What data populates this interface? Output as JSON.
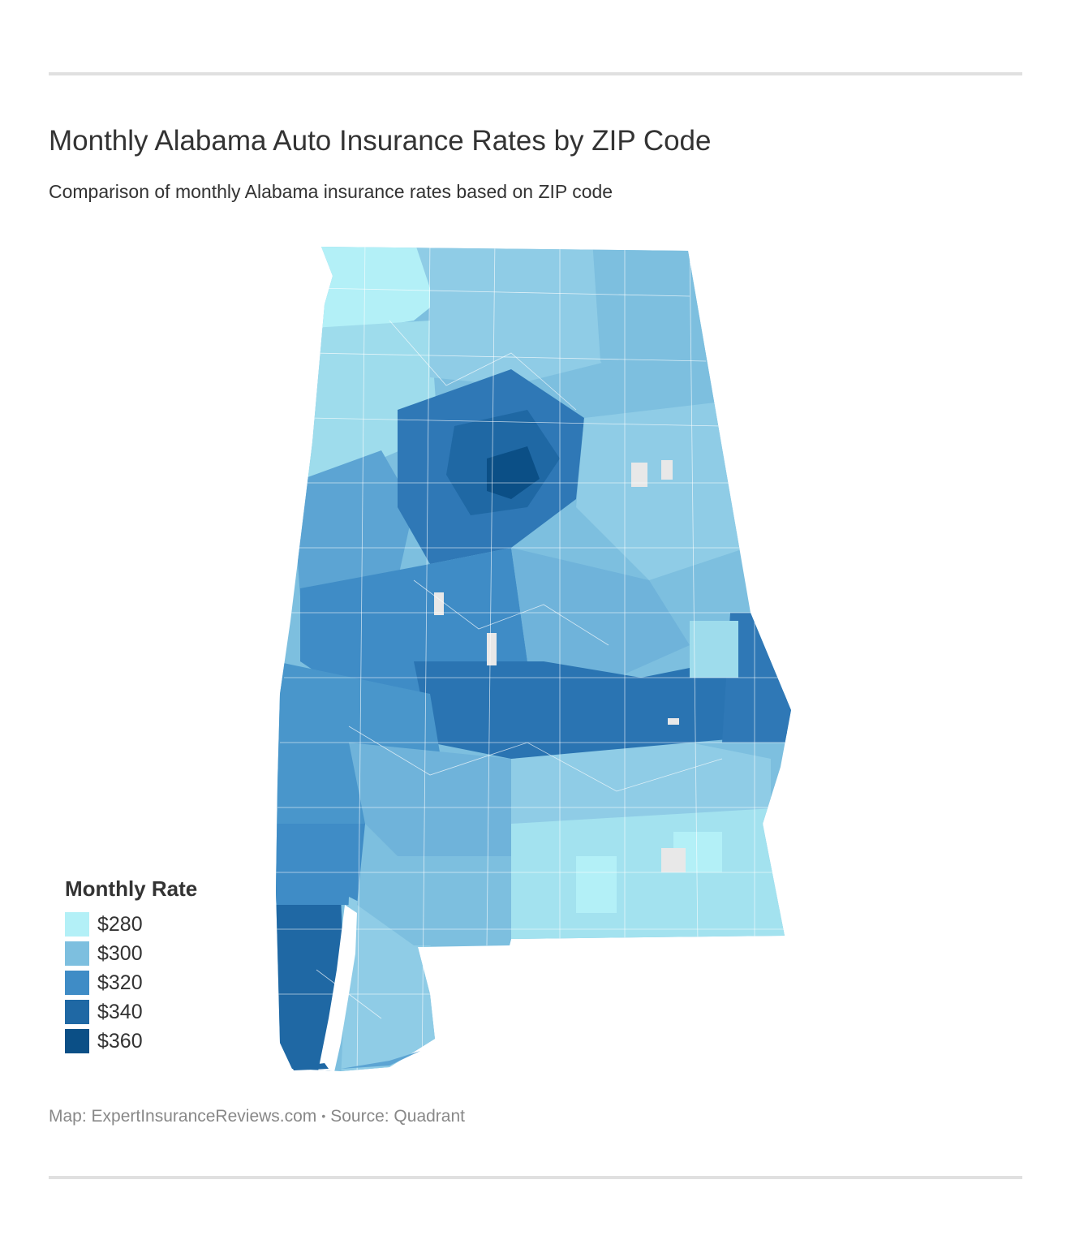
{
  "header": {
    "title": "Monthly Alabama Auto Insurance Rates by ZIP Code",
    "subtitle": "Comparison of monthly Alabama insurance rates based on ZIP code"
  },
  "legend": {
    "title": "Monthly Rate",
    "items": [
      {
        "label": "$280",
        "color": "#b3f0f7"
      },
      {
        "label": "$300",
        "color": "#7dbfdf"
      },
      {
        "label": "$320",
        "color": "#3f8cc6"
      },
      {
        "label": "$340",
        "color": "#1f68a4"
      },
      {
        "label": "$360",
        "color": "#0b4f86"
      }
    ],
    "no_data_color": "#e8e8e8"
  },
  "footer": {
    "map_credit": "Map: ExpertInsuranceReviews.com",
    "separator": "•",
    "source": "Source: Quadrant"
  }
}
